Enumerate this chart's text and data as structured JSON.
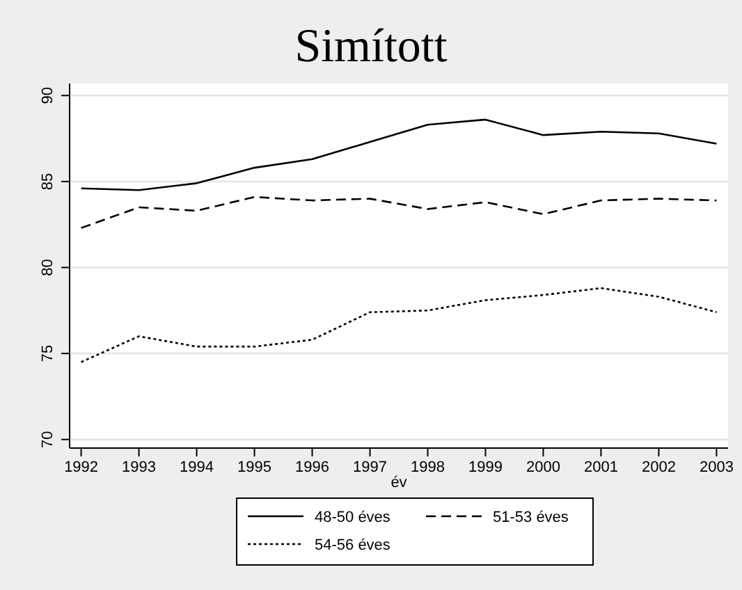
{
  "chart_data": {
    "type": "line",
    "title": "Simított",
    "xlabel": "év",
    "x": [
      1992,
      1993,
      1994,
      1995,
      1996,
      1997,
      1998,
      1999,
      2000,
      2001,
      2002,
      2003
    ],
    "xlim": [
      1991.8,
      2003.2
    ],
    "xticks": [
      1992,
      1993,
      1994,
      1995,
      1996,
      1997,
      1998,
      1999,
      2000,
      2001,
      2002,
      2003
    ],
    "ylim": [
      69.5,
      90.7
    ],
    "yticks": [
      70,
      75,
      80,
      85,
      90
    ],
    "grid": "y",
    "legend": "bottom",
    "series": [
      {
        "name": "48-50 éves",
        "color": "#000000",
        "line_style": "solid",
        "values": [
          84.6,
          84.5,
          84.9,
          85.8,
          86.3,
          87.3,
          88.3,
          88.6,
          87.7,
          87.9,
          87.8,
          87.2
        ]
      },
      {
        "name": "51-53 éves",
        "color": "#000000",
        "line_style": "dashed",
        "values": [
          82.3,
          83.5,
          83.3,
          84.1,
          83.9,
          84.0,
          83.4,
          83.8,
          83.1,
          83.9,
          84.0,
          83.9
        ]
      },
      {
        "name": "54-56 éves",
        "color": "#000000",
        "line_style": "dotted",
        "values": [
          74.5,
          76.0,
          75.4,
          75.4,
          75.8,
          77.4,
          77.5,
          78.1,
          78.4,
          78.8,
          78.3,
          77.4
        ]
      }
    ]
  }
}
